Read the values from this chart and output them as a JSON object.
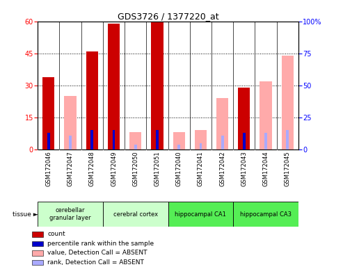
{
  "title": "GDS3726 / 1377220_at",
  "samples": [
    "GSM172046",
    "GSM172047",
    "GSM172048",
    "GSM172049",
    "GSM172050",
    "GSM172051",
    "GSM172040",
    "GSM172041",
    "GSM172042",
    "GSM172043",
    "GSM172044",
    "GSM172045"
  ],
  "count": [
    34,
    0,
    46,
    59,
    0,
    60,
    0,
    0,
    0,
    29,
    0,
    0
  ],
  "percentile_rank": [
    13,
    0,
    15,
    15,
    0,
    15,
    0,
    0,
    13,
    13,
    0,
    15
  ],
  "value_absent": [
    0,
    25,
    0,
    0,
    8,
    0,
    8,
    9,
    24,
    0,
    32,
    44
  ],
  "rank_absent": [
    0,
    11,
    0,
    0,
    4,
    0,
    4,
    5,
    11,
    0,
    13,
    15
  ],
  "has_count": [
    true,
    false,
    true,
    true,
    false,
    true,
    false,
    false,
    false,
    true,
    false,
    false
  ],
  "has_absent": [
    false,
    true,
    false,
    false,
    true,
    false,
    true,
    true,
    true,
    false,
    true,
    true
  ],
  "tissues": [
    {
      "label": "cerebellar\ngranular layer",
      "start": 0,
      "end": 3,
      "color": "#ccffcc"
    },
    {
      "label": "cerebral cortex",
      "start": 3,
      "end": 6,
      "color": "#ccffcc"
    },
    {
      "label": "hippocampal CA1",
      "start": 6,
      "end": 9,
      "color": "#55ee55"
    },
    {
      "label": "hippocampal CA3",
      "start": 9,
      "end": 12,
      "color": "#55ee55"
    }
  ],
  "ylim_left": [
    0,
    60
  ],
  "ylim_right": [
    0,
    100
  ],
  "left_ticks": [
    0,
    15,
    30,
    45,
    60
  ],
  "right_ticks": [
    0,
    25,
    50,
    75,
    100
  ],
  "count_color": "#cc0000",
  "rank_color": "#0000cc",
  "absent_value_color": "#ffaaaa",
  "absent_rank_color": "#aaaaff",
  "bg_color": "#ffffff",
  "tick_area_color": "#cccccc",
  "wide_bar_width": 0.55,
  "thin_bar_width": 0.12
}
